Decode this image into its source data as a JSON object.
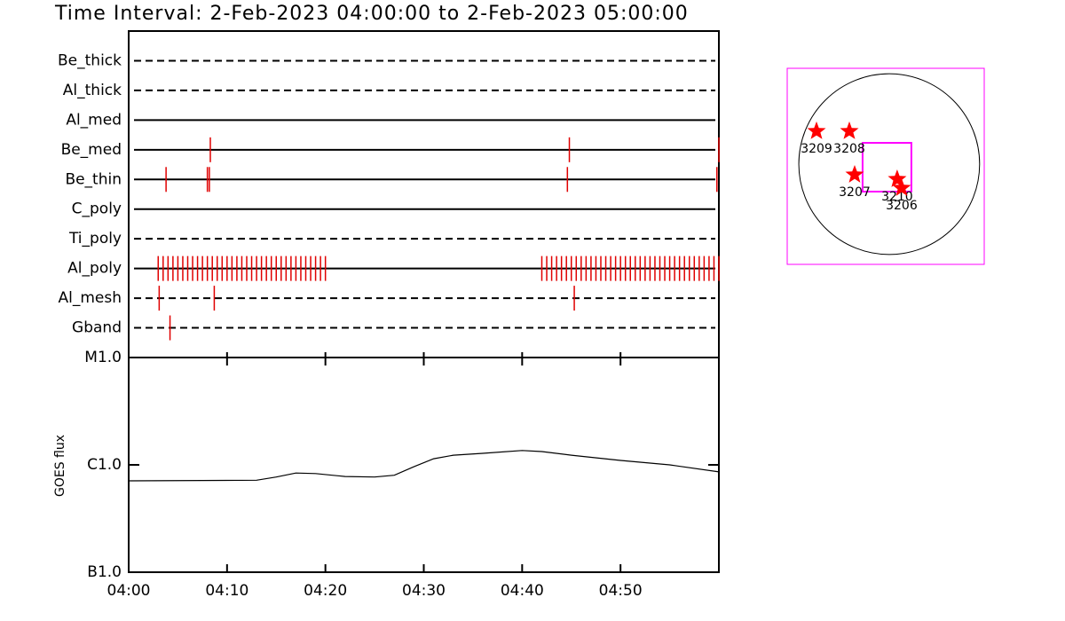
{
  "chart_data": [
    {
      "type": "event",
      "title": "Time Interval:  2-Feb-2023 04:00:00 to  2-Feb-2023 05:00:00",
      "xlim": [
        0,
        60
      ],
      "color": "#e00000",
      "rows": [
        {
          "name": "Be_thick",
          "style": "dashed",
          "events": []
        },
        {
          "name": "Al_thick",
          "style": "dashed",
          "events": []
        },
        {
          "name": "Al_med",
          "style": "solid",
          "events": []
        },
        {
          "name": "Be_med",
          "style": "solid",
          "events": [
            8.3,
            44.8,
            60
          ]
        },
        {
          "name": "Be_thin",
          "style": "solid",
          "events": [
            3.8,
            8.0,
            8.2,
            44.6,
            59.8
          ]
        },
        {
          "name": "C_poly",
          "style": "solid",
          "events": []
        },
        {
          "name": "Ti_poly",
          "style": "dashed",
          "events": []
        },
        {
          "name": "Al_poly",
          "style": "solid",
          "events": [
            3,
            3.5,
            4,
            4.5,
            5,
            5.5,
            6,
            6.5,
            7,
            7.5,
            8,
            8.5,
            9,
            9.5,
            10,
            10.5,
            11,
            11.5,
            12,
            12.5,
            13,
            13.5,
            14,
            14.5,
            15,
            15.5,
            16,
            16.5,
            17,
            17.5,
            18,
            18.5,
            19,
            19.5,
            20,
            42,
            42.5,
            43,
            43.5,
            44,
            44.5,
            45,
            45.5,
            46,
            46.5,
            47,
            47.5,
            48,
            48.5,
            49,
            49.5,
            50,
            50.5,
            51,
            51.5,
            52,
            52.5,
            53,
            53.5,
            54,
            54.5,
            55,
            55.5,
            56,
            56.5,
            57,
            57.5,
            58,
            58.5,
            59,
            59.5,
            60
          ]
        },
        {
          "name": "Al_mesh",
          "style": "dashed",
          "events": [
            3.1,
            8.7,
            45.3
          ]
        },
        {
          "name": "Gband",
          "style": "dashed",
          "events": [
            4.2
          ]
        }
      ]
    },
    {
      "type": "line",
      "ylabel": "GOES flux",
      "log_scale": true,
      "color": "#000000",
      "x": [
        0,
        13,
        15,
        17,
        19,
        22,
        25,
        27,
        29,
        31,
        33,
        36,
        40,
        42,
        45,
        50,
        55,
        60
      ],
      "values": [
        7.1e-07,
        7.2e-07,
        7.7e-07,
        8.4e-07,
        8.3e-07,
        7.8e-07,
        7.7e-07,
        8e-07,
        9.6e-07,
        1.14e-06,
        1.23e-06,
        1.28e-06,
        1.36e-06,
        1.33e-06,
        1.23e-06,
        1.1e-06,
        1e-06,
        8.6e-07
      ],
      "xlim": [
        0,
        60
      ],
      "xticks": [
        {
          "value": 0,
          "label": "04:00"
        },
        {
          "value": 10,
          "label": "04:10"
        },
        {
          "value": 20,
          "label": "04:20"
        },
        {
          "value": 30,
          "label": "04:30"
        },
        {
          "value": 40,
          "label": "04:40"
        },
        {
          "value": 50,
          "label": "04:50"
        }
      ],
      "ylim": [
        1e-07,
        1e-05
      ],
      "yticks": [
        {
          "value": 1e-05,
          "label": "M1.0"
        },
        {
          "value": 1e-06,
          "label": "C1.0"
        },
        {
          "value": 1e-07,
          "label": "B1.0"
        }
      ]
    },
    {
      "type": "scatter",
      "xlim": [
        -1100,
        1025
      ],
      "ylim": [
        -1080,
        1032
      ],
      "limb_radius": 975,
      "frame_color": "#ff00ff",
      "color": "#ff0000",
      "box": {
        "xlim": [
          -287,
          239
        ],
        "ylim": [
          -296,
          229
        ]
      },
      "points": [
        {
          "label": "3209",
          "x": -784,
          "y": 354
        },
        {
          "label": "3208",
          "x": -430,
          "y": 354
        },
        {
          "label": "3207",
          "x": -373,
          "y": -115
        },
        {
          "label": "3210",
          "x": 86,
          "y": -163
        },
        {
          "label": "3206",
          "x": 134,
          "y": -258
        }
      ]
    }
  ]
}
